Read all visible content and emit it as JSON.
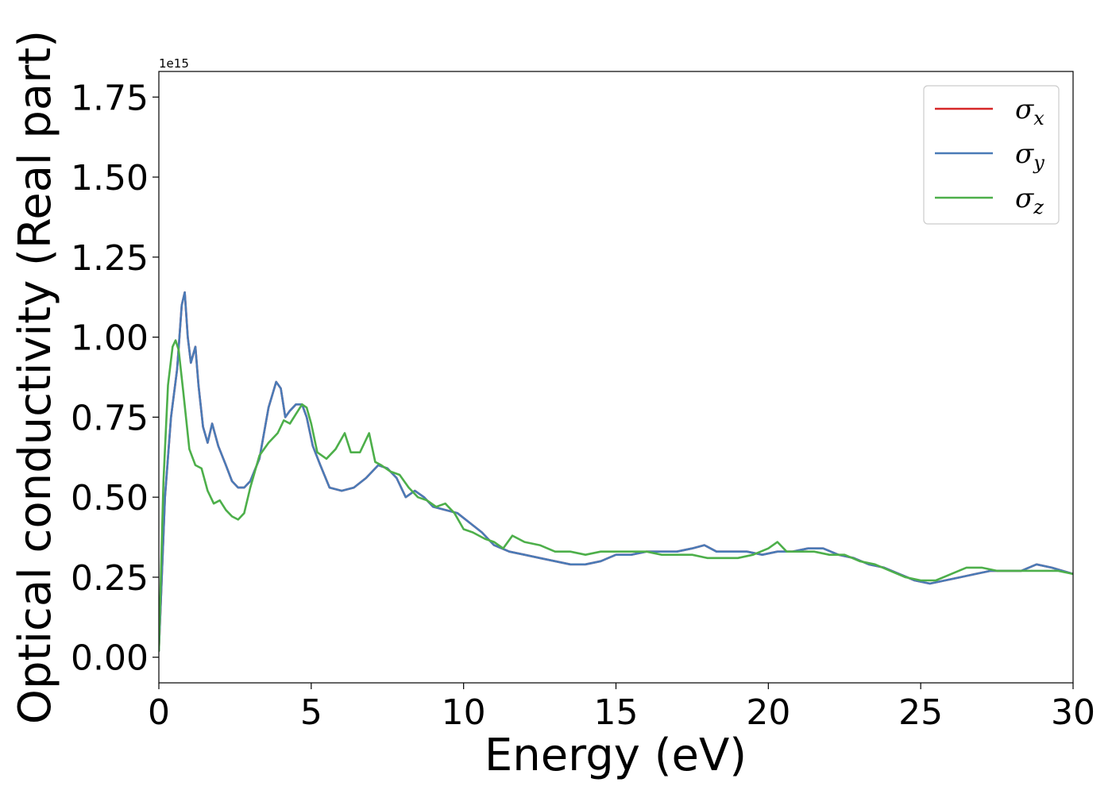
{
  "chart_data": {
    "type": "line",
    "xlabel": "Energy (eV)",
    "ylabel": "Optical conductivity (Real part)",
    "offset_text": "1e15",
    "xlim": [
      0,
      30
    ],
    "ylim": [
      -0.08,
      1.83
    ],
    "x_ticks": [
      0,
      5,
      10,
      15,
      20,
      25,
      30
    ],
    "x_tick_labels": [
      "0",
      "5",
      "10",
      "15",
      "20",
      "25",
      "30"
    ],
    "y_ticks": [
      0,
      0.25,
      0.5,
      0.75,
      1.0,
      1.25,
      1.5,
      1.75
    ],
    "y_tick_labels": [
      "0.00",
      "0.25",
      "0.50",
      "0.75",
      "1.00",
      "1.25",
      "1.50",
      "1.75"
    ],
    "grid": false,
    "legend_position": "top-right",
    "series": [
      {
        "name": "σx",
        "legend_base": "σ",
        "legend_sub": "x",
        "color": "#d62728",
        "x": [
          0,
          0.2,
          0.4,
          0.6,
          0.75,
          0.85,
          0.95,
          1.05,
          1.2,
          1.3,
          1.45,
          1.6,
          1.75,
          1.95,
          2.2,
          2.4,
          2.6,
          2.8,
          3.0,
          3.3,
          3.6,
          3.85,
          4.0,
          4.15,
          4.3,
          4.5,
          4.7,
          4.85,
          5.05,
          5.3,
          5.6,
          6.0,
          6.4,
          6.8,
          7.2,
          7.5,
          7.8,
          8.1,
          8.4,
          8.7,
          9.0,
          9.4,
          9.8,
          10.2,
          10.6,
          11.0,
          11.5,
          12.0,
          12.5,
          13.0,
          13.5,
          14.0,
          14.5,
          15.0,
          15.5,
          16.0,
          16.5,
          17.0,
          17.5,
          17.9,
          18.3,
          18.8,
          19.3,
          19.8,
          20.3,
          20.8,
          21.3,
          21.8,
          22.3,
          22.8,
          23.3,
          23.8,
          24.3,
          24.8,
          25.3,
          25.8,
          26.3,
          26.8,
          27.3,
          27.8,
          28.3,
          28.8,
          29.3,
          30.0
        ],
        "y": [
          0.02,
          0.5,
          0.75,
          0.9,
          1.1,
          1.14,
          1.0,
          0.92,
          0.97,
          0.85,
          0.72,
          0.67,
          0.73,
          0.66,
          0.6,
          0.55,
          0.53,
          0.53,
          0.55,
          0.62,
          0.78,
          0.86,
          0.84,
          0.75,
          0.77,
          0.79,
          0.79,
          0.75,
          0.66,
          0.6,
          0.53,
          0.52,
          0.53,
          0.56,
          0.6,
          0.59,
          0.56,
          0.5,
          0.52,
          0.5,
          0.47,
          0.46,
          0.45,
          0.42,
          0.39,
          0.35,
          0.33,
          0.32,
          0.31,
          0.3,
          0.29,
          0.29,
          0.3,
          0.32,
          0.32,
          0.33,
          0.33,
          0.33,
          0.34,
          0.35,
          0.33,
          0.33,
          0.33,
          0.32,
          0.33,
          0.33,
          0.34,
          0.34,
          0.32,
          0.31,
          0.29,
          0.28,
          0.26,
          0.24,
          0.23,
          0.24,
          0.25,
          0.26,
          0.27,
          0.27,
          0.27,
          0.29,
          0.28,
          0.26
        ]
      },
      {
        "name": "σy",
        "legend_base": "σ",
        "legend_sub": "y",
        "color": "#4a7bb7",
        "x": [
          0,
          0.2,
          0.4,
          0.6,
          0.75,
          0.85,
          0.95,
          1.05,
          1.2,
          1.3,
          1.45,
          1.6,
          1.75,
          1.95,
          2.2,
          2.4,
          2.6,
          2.8,
          3.0,
          3.3,
          3.6,
          3.85,
          4.0,
          4.15,
          4.3,
          4.5,
          4.7,
          4.85,
          5.05,
          5.3,
          5.6,
          6.0,
          6.4,
          6.8,
          7.2,
          7.5,
          7.8,
          8.1,
          8.4,
          8.7,
          9.0,
          9.4,
          9.8,
          10.2,
          10.6,
          11.0,
          11.5,
          12.0,
          12.5,
          13.0,
          13.5,
          14.0,
          14.5,
          15.0,
          15.5,
          16.0,
          16.5,
          17.0,
          17.5,
          17.9,
          18.3,
          18.8,
          19.3,
          19.8,
          20.3,
          20.8,
          21.3,
          21.8,
          22.3,
          22.8,
          23.3,
          23.8,
          24.3,
          24.8,
          25.3,
          25.8,
          26.3,
          26.8,
          27.3,
          27.8,
          28.3,
          28.8,
          29.3,
          30.0
        ],
        "y": [
          0.02,
          0.5,
          0.75,
          0.9,
          1.1,
          1.14,
          1.0,
          0.92,
          0.97,
          0.85,
          0.72,
          0.67,
          0.73,
          0.66,
          0.6,
          0.55,
          0.53,
          0.53,
          0.55,
          0.62,
          0.78,
          0.86,
          0.84,
          0.75,
          0.77,
          0.79,
          0.79,
          0.75,
          0.66,
          0.6,
          0.53,
          0.52,
          0.53,
          0.56,
          0.6,
          0.59,
          0.56,
          0.5,
          0.52,
          0.5,
          0.47,
          0.46,
          0.45,
          0.42,
          0.39,
          0.35,
          0.33,
          0.32,
          0.31,
          0.3,
          0.29,
          0.29,
          0.3,
          0.32,
          0.32,
          0.33,
          0.33,
          0.33,
          0.34,
          0.35,
          0.33,
          0.33,
          0.33,
          0.32,
          0.33,
          0.33,
          0.34,
          0.34,
          0.32,
          0.31,
          0.29,
          0.28,
          0.26,
          0.24,
          0.23,
          0.24,
          0.25,
          0.26,
          0.27,
          0.27,
          0.27,
          0.29,
          0.28,
          0.26
        ]
      },
      {
        "name": "σz",
        "legend_base": "σ",
        "legend_sub": "z",
        "color": "#4daf4a",
        "x": [
          0,
          0.15,
          0.3,
          0.45,
          0.55,
          0.65,
          0.8,
          1.0,
          1.2,
          1.4,
          1.6,
          1.8,
          2.0,
          2.2,
          2.4,
          2.6,
          2.8,
          3.0,
          3.3,
          3.6,
          3.9,
          4.1,
          4.3,
          4.5,
          4.7,
          4.85,
          5.0,
          5.2,
          5.5,
          5.8,
          6.1,
          6.3,
          6.6,
          6.9,
          7.1,
          7.3,
          7.6,
          7.9,
          8.2,
          8.5,
          8.8,
          9.1,
          9.4,
          9.7,
          10.0,
          10.3,
          10.7,
          11.0,
          11.3,
          11.6,
          12.0,
          12.5,
          13.0,
          13.5,
          14.0,
          14.5,
          15.0,
          15.5,
          16.0,
          16.5,
          17.0,
          17.5,
          18.0,
          18.5,
          19.0,
          19.5,
          20.0,
          20.3,
          20.6,
          21.0,
          21.5,
          22.0,
          22.5,
          23.0,
          23.5,
          24.0,
          24.5,
          25.0,
          25.5,
          26.0,
          26.5,
          27.0,
          27.5,
          28.0,
          28.5,
          29.0,
          29.5,
          30.0
        ],
        "y": [
          0.02,
          0.55,
          0.85,
          0.97,
          0.99,
          0.96,
          0.83,
          0.65,
          0.6,
          0.59,
          0.52,
          0.48,
          0.49,
          0.46,
          0.44,
          0.43,
          0.45,
          0.53,
          0.63,
          0.67,
          0.7,
          0.74,
          0.73,
          0.76,
          0.79,
          0.78,
          0.73,
          0.64,
          0.62,
          0.65,
          0.7,
          0.64,
          0.64,
          0.7,
          0.61,
          0.6,
          0.58,
          0.57,
          0.53,
          0.5,
          0.49,
          0.47,
          0.48,
          0.45,
          0.4,
          0.39,
          0.37,
          0.36,
          0.34,
          0.38,
          0.36,
          0.35,
          0.33,
          0.33,
          0.32,
          0.33,
          0.33,
          0.33,
          0.33,
          0.32,
          0.32,
          0.32,
          0.31,
          0.31,
          0.31,
          0.32,
          0.34,
          0.36,
          0.33,
          0.33,
          0.33,
          0.32,
          0.32,
          0.3,
          0.29,
          0.27,
          0.25,
          0.24,
          0.24,
          0.26,
          0.28,
          0.28,
          0.27,
          0.27,
          0.27,
          0.27,
          0.27,
          0.26
        ]
      }
    ]
  }
}
